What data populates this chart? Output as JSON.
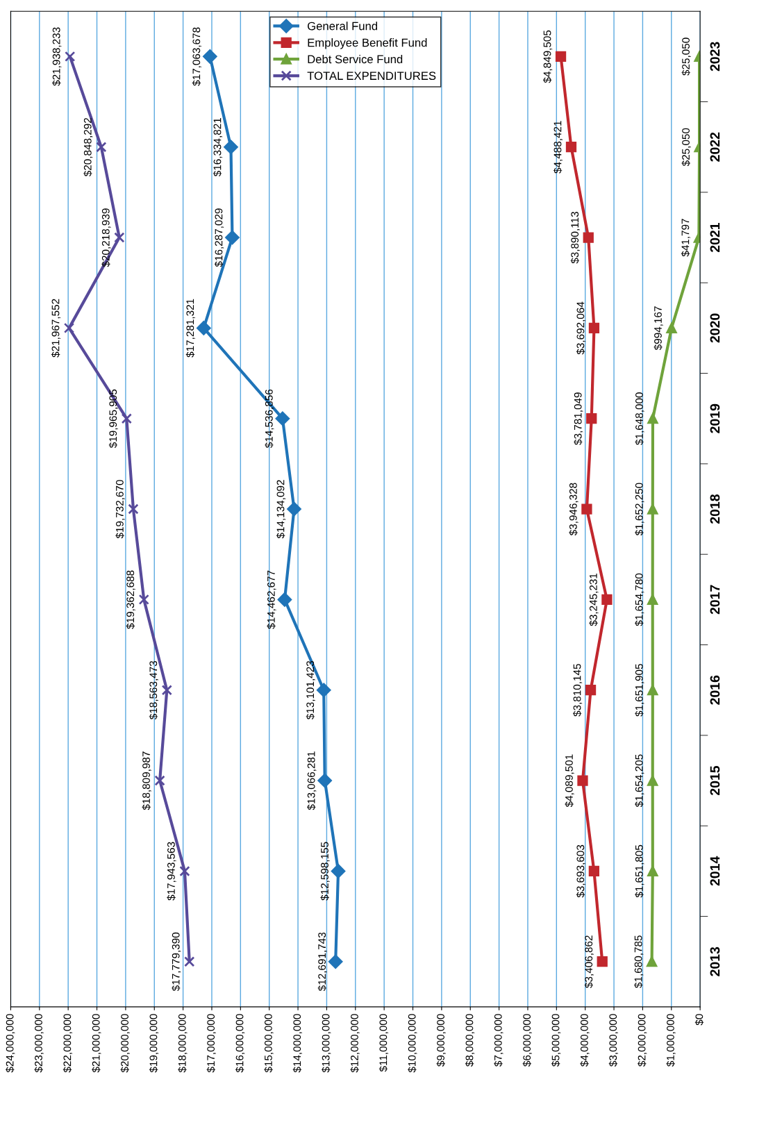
{
  "chart_data": {
    "type": "line",
    "orientation": "horizontal",
    "categories": [
      "2023",
      "2022",
      "2021",
      "2020",
      "2019",
      "2018",
      "2017",
      "2016",
      "2015",
      "2014",
      "2013"
    ],
    "series": [
      {
        "name": "General Fund",
        "color": "#1f74b8",
        "marker": "diamond",
        "values": [
          17063678,
          16334821,
          16287029,
          17281321,
          14536856,
          14134092,
          14462677,
          13101423,
          13066281,
          12598155,
          12691743
        ],
        "value_labels": [
          "$17,063,678",
          "$16,334,821",
          "$16,287,029",
          "$17,281,321",
          "$14,536,856",
          "$14,134,092",
          "$14,462,677",
          "$13,101,423",
          "$13,066,281",
          "$12,598,155",
          "$12,691,743"
        ]
      },
      {
        "name": "Employee Benefit Fund",
        "color": "#c1272d",
        "marker": "square",
        "values": [
          4849505,
          4488421,
          3890113,
          3692064,
          3781049,
          3946328,
          3245231,
          3810145,
          4089501,
          3693603,
          3406862
        ],
        "value_labels": [
          "$4,849,505",
          "$4,488,421",
          "$3,890,113",
          "$3,692,064",
          "$3,781,049",
          "$3,946,328",
          "$3,245,231",
          "$3,810,145",
          "$4,089,501",
          "$3,693,603",
          "$3,406,862"
        ]
      },
      {
        "name": "Debt Service Fund",
        "color": "#6fa33b",
        "marker": "triangle",
        "values": [
          25050,
          25050,
          41797,
          994167,
          1648000,
          1652250,
          1654780,
          1651905,
          1654205,
          1651805,
          1680785
        ],
        "value_labels": [
          "$25,050",
          "$25,050",
          "$41,797",
          "$994,167",
          "$1,648,000",
          "$1,652,250",
          "$1,654,780",
          "$1,651,905",
          "$1,654,205",
          "$1,651,805",
          "$1,680,785"
        ]
      },
      {
        "name": "TOTAL EXPENDITURES",
        "color": "#574a9a",
        "marker": "cross",
        "values": [
          21938233,
          20848292,
          20218939,
          21967552,
          19965905,
          19732670,
          19362688,
          18563473,
          18809987,
          17943563,
          17779390
        ],
        "value_labels": [
          "$21,938,233",
          "$20,848,292",
          "$20,218,939",
          "$21,967,552",
          "$19,965,905",
          "$19,732,670",
          "$19,362,688",
          "$18,563,473",
          "$18,809,987",
          "$17,943,563",
          "$17,779,390"
        ]
      }
    ],
    "xlim": [
      24000000,
      0
    ],
    "xticks": [
      {
        "value": 24000000,
        "label": "$24,000,000"
      },
      {
        "value": 23000000,
        "label": "$23,000,000"
      },
      {
        "value": 22000000,
        "label": "$22,000,000"
      },
      {
        "value": 21000000,
        "label": "$21,000,000"
      },
      {
        "value": 20000000,
        "label": "$20,000,000"
      },
      {
        "value": 19000000,
        "label": "$19,000,000"
      },
      {
        "value": 18000000,
        "label": "$18,000,000"
      },
      {
        "value": 17000000,
        "label": "$17,000,000"
      },
      {
        "value": 16000000,
        "label": "$16,000,000"
      },
      {
        "value": 15000000,
        "label": "$15,000,000"
      },
      {
        "value": 14000000,
        "label": "$14,000,000"
      },
      {
        "value": 13000000,
        "label": "$13,000,000"
      },
      {
        "value": 12000000,
        "label": "$12,000,000"
      },
      {
        "value": 11000000,
        "label": "$11,000,000"
      },
      {
        "value": 10000000,
        "label": "$10,000,000"
      },
      {
        "value": 9000000,
        "label": "$9,000,000"
      },
      {
        "value": 8000000,
        "label": "$8,000,000"
      },
      {
        "value": 7000000,
        "label": "$7,000,000"
      },
      {
        "value": 6000000,
        "label": "$6,000,000"
      },
      {
        "value": 5000000,
        "label": "$5,000,000"
      },
      {
        "value": 4000000,
        "label": "$4,000,000"
      },
      {
        "value": 3000000,
        "label": "$3,000,000"
      },
      {
        "value": 2000000,
        "label": "$2,000,000"
      },
      {
        "value": 1000000,
        "label": "$1,000,000"
      },
      {
        "value": 0,
        "label": "$0"
      }
    ],
    "grid": "x",
    "legend": "top",
    "line_style": "solid"
  }
}
